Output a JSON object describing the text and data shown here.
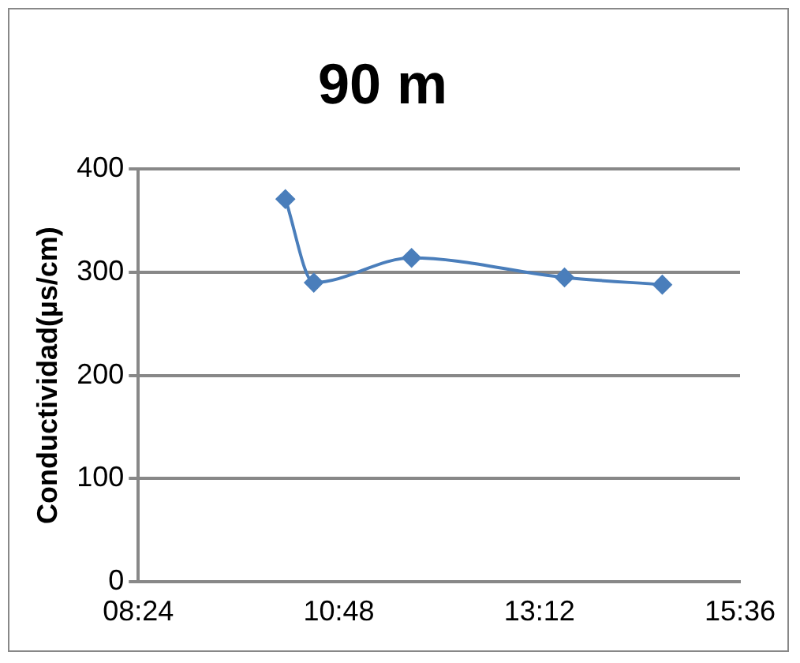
{
  "chart_data": {
    "type": "line",
    "title": "90 m",
    "ylabel": "Conductividad(µs/cm)",
    "x": [
      10.16,
      10.5,
      11.67,
      13.5,
      14.67
    ],
    "series": [
      {
        "color": "#4a7ebb",
        "values": [
          371,
          290,
          314,
          295,
          288
        ]
      }
    ],
    "xlim": [
      8.4,
      15.6
    ],
    "xticks": [
      {
        "value": 8.4,
        "label": "08:24"
      },
      {
        "value": 10.8,
        "label": "10:48"
      },
      {
        "value": 13.2,
        "label": "13:12"
      },
      {
        "value": 15.6,
        "label": "15:36"
      }
    ],
    "ylim": [
      0,
      400
    ],
    "yticks": [
      0,
      100,
      200,
      300,
      400
    ],
    "grid": "y",
    "legend": false,
    "marker": "diamond",
    "line_style": "solid"
  }
}
